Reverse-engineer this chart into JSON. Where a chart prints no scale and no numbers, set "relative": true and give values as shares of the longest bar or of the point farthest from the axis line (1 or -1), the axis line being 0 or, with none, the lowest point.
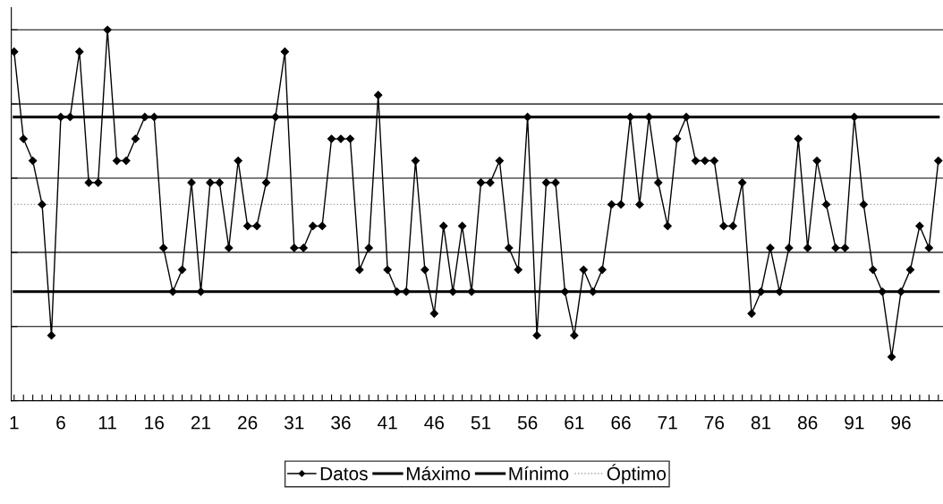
{
  "chart_data": {
    "type": "line",
    "relative": true,
    "grid": "y",
    "legend": "bottom",
    "tick_labels": "x",
    "categories": [
      "1",
      null,
      null,
      null,
      null,
      "6",
      null,
      null,
      null,
      null,
      "11",
      null,
      null,
      null,
      null,
      "16",
      null,
      null,
      null,
      null,
      "21",
      null,
      null,
      null,
      null,
      "26",
      null,
      null,
      null,
      null,
      "31",
      null,
      null,
      null,
      null,
      "36",
      null,
      null,
      null,
      null,
      "41",
      null,
      null,
      null,
      null,
      "46",
      null,
      null,
      null,
      null,
      "51",
      null,
      null,
      null,
      null,
      "56",
      null,
      null,
      null,
      null,
      "61",
      null,
      null,
      null,
      null,
      "66",
      null,
      null,
      null,
      null,
      "71",
      null,
      null,
      null,
      null,
      "76",
      null,
      null,
      null,
      null,
      "81",
      null,
      null,
      null,
      null,
      "86",
      null,
      null,
      null,
      null,
      "91",
      null,
      null,
      null,
      null,
      "96",
      null,
      null,
      null,
      null
    ],
    "series": [
      {
        "name": "Datos",
        "color": "#000000",
        "marker": "diamond",
        "line_style": "solid",
        "values": [
          0.941,
          0.706,
          0.647,
          0.529,
          0.176,
          0.765,
          0.765,
          0.941,
          0.588,
          0.588,
          1,
          0.647,
          0.647,
          0.706,
          0.765,
          0.765,
          0.412,
          0.294,
          0.353,
          0.588,
          0.294,
          0.588,
          0.588,
          0.412,
          0.647,
          0.471,
          0.471,
          0.588,
          0.765,
          0.941,
          0.412,
          0.412,
          0.471,
          0.471,
          0.706,
          0.706,
          0.706,
          0.353,
          0.412,
          0.824,
          0.353,
          0.294,
          0.294,
          0.647,
          0.353,
          0.235,
          0.471,
          0.294,
          0.471,
          0.294,
          0.588,
          0.588,
          0.647,
          0.412,
          0.353,
          0.765,
          0.176,
          0.588,
          0.588,
          0.294,
          0.176,
          0.353,
          0.294,
          0.353,
          0.529,
          0.529,
          0.765,
          0.529,
          0.765,
          0.588,
          0.471,
          0.706,
          0.765,
          0.647,
          0.647,
          0.647,
          0.471,
          0.471,
          0.588,
          0.235,
          0.294,
          0.412,
          0.294,
          0.412,
          0.706,
          0.412,
          0.647,
          0.529,
          0.412,
          0.412,
          0.765,
          0.529,
          0.353,
          0.294,
          0.118,
          0.294,
          0.353,
          0.471,
          0.412,
          0.647
        ]
      },
      {
        "name": "Máximo",
        "color": "#000000",
        "marker": "none",
        "line_style": "solid",
        "values": [
          0.765,
          0.765,
          0.765,
          0.765,
          0.765,
          0.765,
          0.765,
          0.765,
          0.765,
          0.765,
          0.765,
          0.765,
          0.765,
          0.765,
          0.765,
          0.765,
          0.765,
          0.765,
          0.765,
          0.765,
          0.765,
          0.765,
          0.765,
          0.765,
          0.765,
          0.765,
          0.765,
          0.765,
          0.765,
          0.765,
          0.765,
          0.765,
          0.765,
          0.765,
          0.765,
          0.765,
          0.765,
          0.765,
          0.765,
          0.765,
          0.765,
          0.765,
          0.765,
          0.765,
          0.765,
          0.765,
          0.765,
          0.765,
          0.765,
          0.765,
          0.765,
          0.765,
          0.765,
          0.765,
          0.765,
          0.765,
          0.765,
          0.765,
          0.765,
          0.765,
          0.765,
          0.765,
          0.765,
          0.765,
          0.765,
          0.765,
          0.765,
          0.765,
          0.765,
          0.765,
          0.765,
          0.765,
          0.765,
          0.765,
          0.765,
          0.765,
          0.765,
          0.765,
          0.765,
          0.765,
          0.765,
          0.765,
          0.765,
          0.765,
          0.765,
          0.765,
          0.765,
          0.765,
          0.765,
          0.765,
          0.765,
          0.765,
          0.765,
          0.765,
          0.765,
          0.765,
          0.765,
          0.765,
          0.765,
          0.765
        ]
      },
      {
        "name": "Mínimo",
        "color": "#000000",
        "marker": "none",
        "line_style": "solid",
        "values": [
          0.294,
          0.294,
          0.294,
          0.294,
          0.294,
          0.294,
          0.294,
          0.294,
          0.294,
          0.294,
          0.294,
          0.294,
          0.294,
          0.294,
          0.294,
          0.294,
          0.294,
          0.294,
          0.294,
          0.294,
          0.294,
          0.294,
          0.294,
          0.294,
          0.294,
          0.294,
          0.294,
          0.294,
          0.294,
          0.294,
          0.294,
          0.294,
          0.294,
          0.294,
          0.294,
          0.294,
          0.294,
          0.294,
          0.294,
          0.294,
          0.294,
          0.294,
          0.294,
          0.294,
          0.294,
          0.294,
          0.294,
          0.294,
          0.294,
          0.294,
          0.294,
          0.294,
          0.294,
          0.294,
          0.294,
          0.294,
          0.294,
          0.294,
          0.294,
          0.294,
          0.294,
          0.294,
          0.294,
          0.294,
          0.294,
          0.294,
          0.294,
          0.294,
          0.294,
          0.294,
          0.294,
          0.294,
          0.294,
          0.294,
          0.294,
          0.294,
          0.294,
          0.294,
          0.294,
          0.294,
          0.294,
          0.294,
          0.294,
          0.294,
          0.294,
          0.294,
          0.294,
          0.294,
          0.294,
          0.294,
          0.294,
          0.294,
          0.294,
          0.294,
          0.294,
          0.294,
          0.294,
          0.294,
          0.294,
          0.294
        ]
      },
      {
        "name": "Óptimo",
        "color": "#a0a0a0",
        "marker": "none",
        "line_style": "dotted",
        "values": [
          0.529,
          0.529,
          0.529,
          0.529,
          0.529,
          0.529,
          0.529,
          0.529,
          0.529,
          0.529,
          0.529,
          0.529,
          0.529,
          0.529,
          0.529,
          0.529,
          0.529,
          0.529,
          0.529,
          0.529,
          0.529,
          0.529,
          0.529,
          0.529,
          0.529,
          0.529,
          0.529,
          0.529,
          0.529,
          0.529,
          0.529,
          0.529,
          0.529,
          0.529,
          0.529,
          0.529,
          0.529,
          0.529,
          0.529,
          0.529,
          0.529,
          0.529,
          0.529,
          0.529,
          0.529,
          0.529,
          0.529,
          0.529,
          0.529,
          0.529,
          0.529,
          0.529,
          0.529,
          0.529,
          0.529,
          0.529,
          0.529,
          0.529,
          0.529,
          0.529,
          0.529,
          0.529,
          0.529,
          0.529,
          0.529,
          0.529,
          0.529,
          0.529,
          0.529,
          0.529,
          0.529,
          0.529,
          0.529,
          0.529,
          0.529,
          0.529,
          0.529,
          0.529,
          0.529,
          0.529,
          0.529,
          0.529,
          0.529,
          0.529,
          0.529,
          0.529,
          0.529,
          0.529,
          0.529,
          0.529,
          0.529,
          0.529,
          0.529,
          0.529,
          0.529,
          0.529,
          0.529,
          0.529,
          0.529,
          0.529
        ]
      }
    ]
  }
}
